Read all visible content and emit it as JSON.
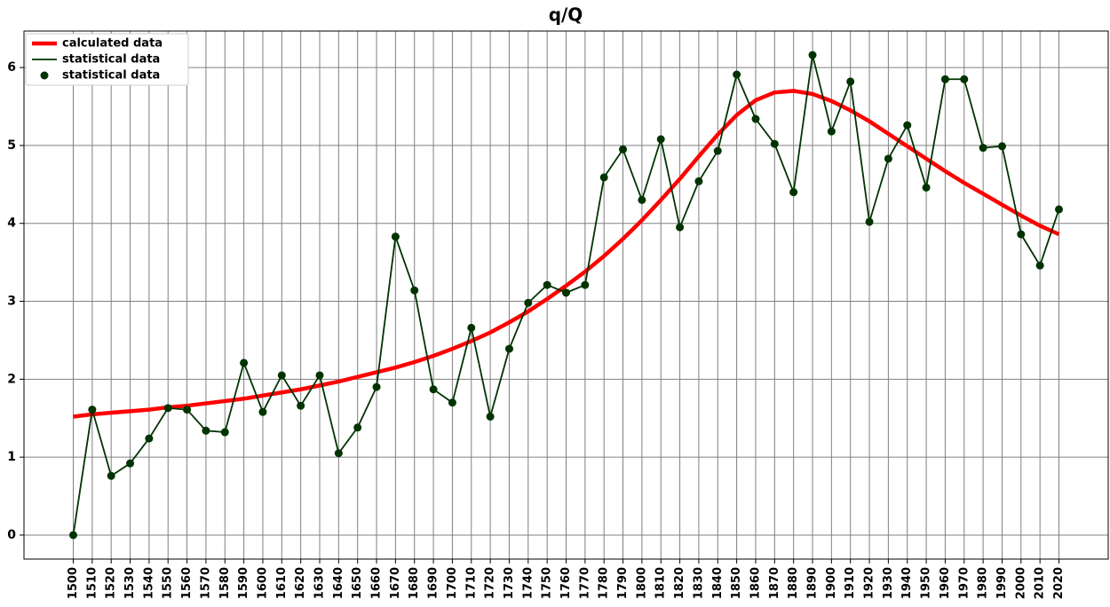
{
  "chart_data": {
    "type": "line",
    "title": "q/Q",
    "x": [
      1500,
      1510,
      1520,
      1530,
      1540,
      1550,
      1560,
      1570,
      1580,
      1590,
      1600,
      1610,
      1620,
      1630,
      1640,
      1650,
      1660,
      1670,
      1680,
      1690,
      1700,
      1710,
      1720,
      1730,
      1740,
      1750,
      1760,
      1770,
      1780,
      1790,
      1800,
      1810,
      1820,
      1830,
      1840,
      1850,
      1860,
      1870,
      1880,
      1890,
      1900,
      1910,
      1920,
      1930,
      1940,
      1950,
      1960,
      1970,
      1980,
      1990,
      2000,
      2010,
      2020
    ],
    "series": [
      {
        "name": "calculated data",
        "color": "#ff0000",
        "markers": false,
        "values": [
          1.52,
          1.55,
          1.57,
          1.59,
          1.61,
          1.64,
          1.66,
          1.69,
          1.72,
          1.75,
          1.79,
          1.83,
          1.87,
          1.92,
          1.97,
          2.03,
          2.09,
          2.15,
          2.22,
          2.3,
          2.39,
          2.49,
          2.6,
          2.73,
          2.87,
          3.03,
          3.2,
          3.38,
          3.58,
          3.8,
          4.04,
          4.3,
          4.57,
          4.86,
          5.14,
          5.39,
          5.58,
          5.68,
          5.7,
          5.66,
          5.57,
          5.45,
          5.31,
          5.15,
          4.99,
          4.83,
          4.67,
          4.52,
          4.38,
          4.24,
          4.1,
          3.97,
          3.86
        ]
      },
      {
        "name": "statistical data",
        "color": "#003300",
        "markers": true,
        "values": [
          0,
          1.61,
          0.76,
          0.92,
          1.24,
          1.63,
          1.61,
          1.34,
          1.32,
          2.21,
          1.58,
          2.05,
          1.66,
          2.05,
          1.05,
          1.38,
          1.9,
          3.83,
          3.14,
          1.87,
          1.7,
          2.66,
          1.52,
          2.39,
          2.98,
          3.21,
          3.11,
          3.21,
          4.59,
          4.95,
          4.3,
          5.08,
          3.95,
          4.54,
          4.93,
          5.91,
          5.34,
          5.02,
          4.4,
          6.16,
          5.18,
          5.82,
          4.02,
          4.83,
          5.26,
          4.46,
          5.85,
          5.85,
          4.97,
          4.99,
          3.86,
          3.46,
          4.18
        ]
      }
    ],
    "xlim": [
      1474,
      2046
    ],
    "xticks": [
      1500,
      1510,
      1520,
      1530,
      1540,
      1550,
      1560,
      1570,
      1580,
      1590,
      1600,
      1610,
      1620,
      1630,
      1640,
      1650,
      1660,
      1670,
      1680,
      1690,
      1700,
      1710,
      1720,
      1730,
      1740,
      1750,
      1760,
      1770,
      1780,
      1790,
      1800,
      1810,
      1820,
      1830,
      1840,
      1850,
      1860,
      1870,
      1880,
      1890,
      1900,
      1910,
      1920,
      1930,
      1940,
      1950,
      1960,
      1970,
      1980,
      1990,
      2000,
      2010,
      2020
    ],
    "ylim": [
      -0.308,
      6.468
    ],
    "yticks": [
      0,
      1,
      2,
      3,
      4,
      5,
      6
    ],
    "grid": true,
    "legend": "upper left"
  }
}
